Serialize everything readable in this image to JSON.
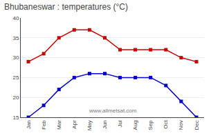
{
  "chart_data": {
    "type": "line",
    "title": "Bhubaneswar : temperatures (°C)",
    "categories": [
      "Jan",
      "Feb",
      "Mar",
      "Apr",
      "May",
      "Jun",
      "Jul",
      "Aug",
      "Sep",
      "Oct",
      "Nov",
      "Dec"
    ],
    "series": [
      {
        "color": "#cc0000",
        "values": [
          29,
          31,
          35,
          37,
          37,
          35,
          32,
          32,
          32,
          32,
          30,
          29
        ]
      },
      {
        "color": "#0000cc",
        "values": [
          15,
          18,
          22,
          25,
          26,
          26,
          25,
          25,
          25,
          23,
          19,
          15
        ]
      }
    ],
    "marker": "square",
    "ylim": [
      15,
      40
    ],
    "yticks": [
      15,
      20,
      25,
      30,
      35,
      40
    ],
    "grid": true,
    "annotations": [
      "www.allmetsat.com"
    ]
  }
}
